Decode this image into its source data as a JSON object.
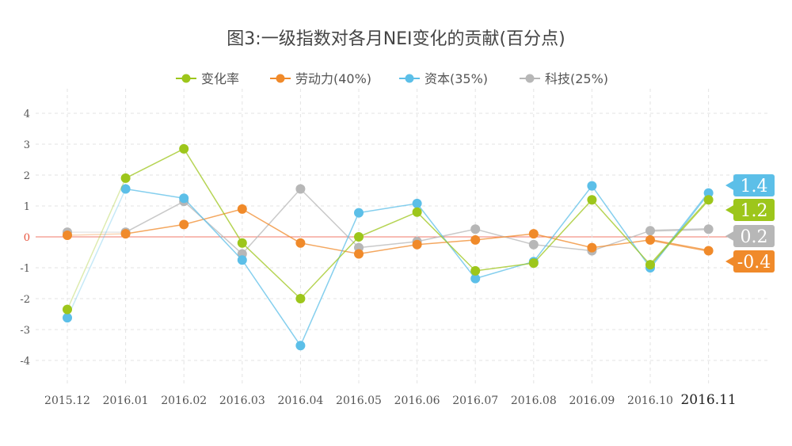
{
  "chart_data": {
    "type": "line",
    "title": "图3:一级指数对各月NEI变化的贡献(百分点)",
    "categories": [
      "2015.12",
      "2016.01",
      "2016.02",
      "2016.03",
      "2016.04",
      "2016.05",
      "2016.06",
      "2016.07",
      "2016.08",
      "2016.09",
      "2016.10",
      "2016.11"
    ],
    "ylim": [
      -4,
      4
    ],
    "yticks": [
      "4",
      "3",
      "2",
      "1",
      "0",
      "-1",
      "-2",
      "-3",
      "-4"
    ],
    "grid": true,
    "legend_position": "top-center",
    "series": [
      {
        "name": "变化率",
        "color": "#9dc61b",
        "values": [
          -2.35,
          1.9,
          2.85,
          -0.2,
          -2.0,
          0.0,
          0.8,
          -1.1,
          -0.85,
          1.2,
          -0.9,
          1.2
        ]
      },
      {
        "name": "劳动力(40%)",
        "color": "#f08a2a",
        "values": [
          0.05,
          0.1,
          0.4,
          0.9,
          -0.2,
          -0.55,
          -0.25,
          -0.1,
          0.1,
          -0.35,
          -0.1,
          -0.45
        ]
      },
      {
        "name": "资本(35%)",
        "color": "#5cbfe8",
        "values": [
          -2.62,
          1.55,
          1.25,
          -0.75,
          -3.52,
          0.78,
          1.08,
          -1.35,
          -0.8,
          1.65,
          -1.0,
          1.42
        ]
      },
      {
        "name": "科技(25%)",
        "color": "#b7b7b7",
        "values": [
          0.15,
          0.15,
          1.15,
          -0.55,
          1.55,
          -0.35,
          -0.15,
          0.25,
          -0.25,
          -0.45,
          0.2,
          0.25
        ]
      }
    ],
    "badges": [
      {
        "label": "1.4",
        "color": "#5cbfe8"
      },
      {
        "label": "1.2",
        "color": "#9dc61b"
      },
      {
        "label": "0.2",
        "color": "#b7b7b7"
      },
      {
        "label": "-0.4",
        "color": "#f08a2a"
      }
    ]
  }
}
